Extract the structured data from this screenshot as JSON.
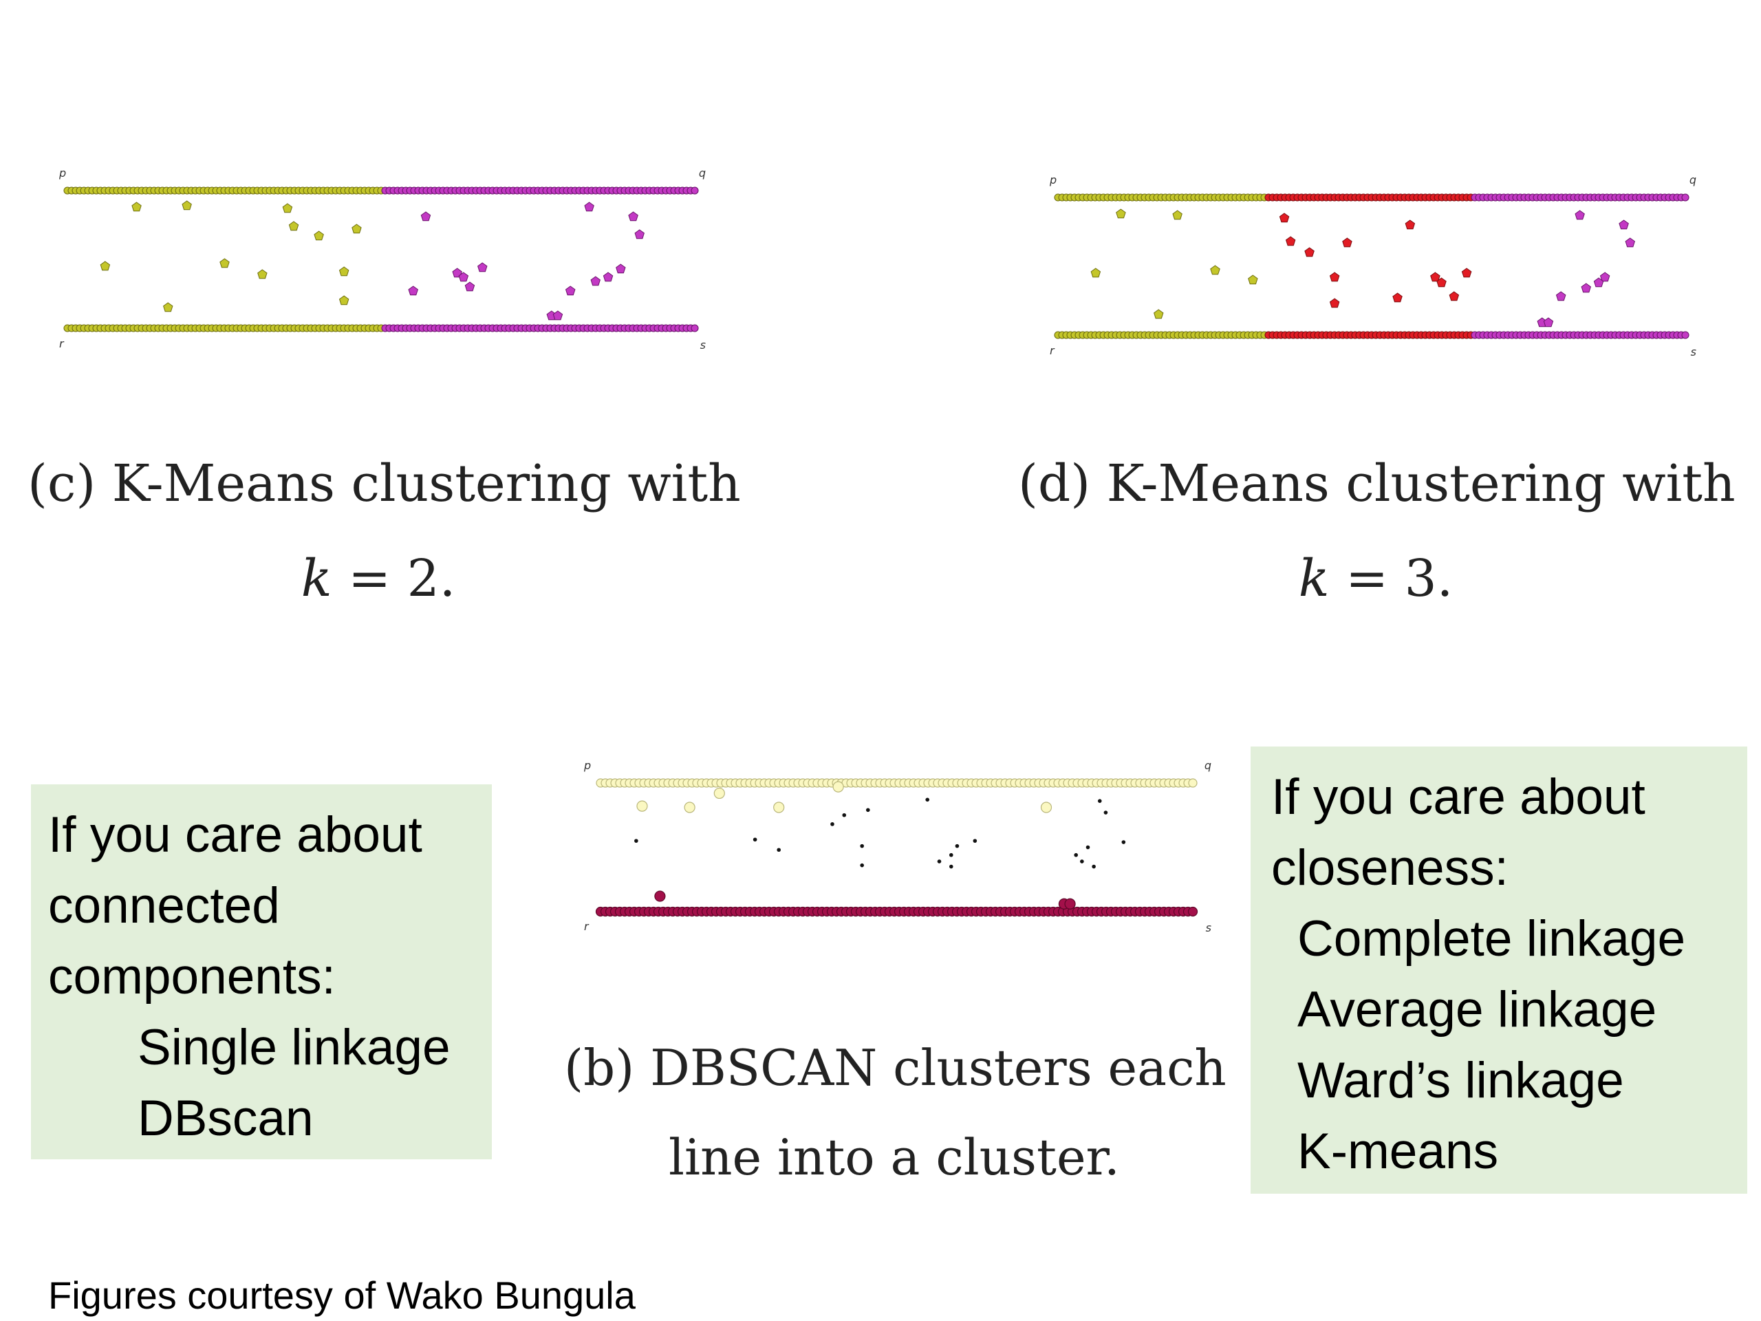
{
  "figures": [
    {
      "id": "c",
      "corner_labels": {
        "top_left": "p",
        "top_right": "q",
        "bottom_left": "r",
        "bottom_right": "s"
      },
      "clusters": [
        {
          "name": "cluster 1",
          "color": "#c4c62a",
          "edge": "#6f7010",
          "line_range": [
            0.0,
            0.5
          ]
        },
        {
          "name": "cluster 2",
          "color": "#c339c4",
          "edge": "#6b146c",
          "line_range": [
            0.5,
            1.0
          ]
        }
      ],
      "caption_line1": "(c) K-Means clustering with",
      "caption_k": "k",
      "caption_eq": " = 2."
    },
    {
      "id": "d",
      "corner_labels": {
        "top_left": "p",
        "top_right": "q",
        "bottom_left": "r",
        "bottom_right": "s"
      },
      "clusters": [
        {
          "name": "cluster 1",
          "color": "#c4c62a",
          "edge": "#6f7010",
          "line_range": [
            0.0,
            0.33
          ]
        },
        {
          "name": "cluster 2",
          "color": "#e21c24",
          "edge": "#7c0b0f",
          "line_range": [
            0.33,
            0.66
          ]
        },
        {
          "name": "cluster 3",
          "color": "#c339c4",
          "edge": "#6b146c",
          "line_range": [
            0.66,
            1.0
          ]
        }
      ],
      "caption_line1": "(d) K-Means clustering with",
      "caption_k": "k",
      "caption_eq": " = 3."
    },
    {
      "id": "b",
      "corner_labels": {
        "top_left": "p",
        "top_right": "q",
        "bottom_left": "r",
        "bottom_right": "s"
      },
      "clusters": [
        {
          "name": "top line cluster",
          "color": "#fbf8c2",
          "edge": "#b9b67a"
        },
        {
          "name": "bottom line cluster",
          "color": "#a3104a",
          "edge": "#5d0628"
        },
        {
          "name": "noise",
          "color": "#111111",
          "edge": "#111111"
        }
      ],
      "caption_line1": "(b) DBSCAN clusters each",
      "caption_line2": "line into a cluster."
    }
  ],
  "left_box": {
    "lines": [
      "If you care about",
      "connected",
      "components:"
    ],
    "items": [
      "Single linkage",
      "DBscan"
    ]
  },
  "right_box": {
    "lines": [
      "If you care about",
      "closeness:"
    ],
    "items": [
      "Complete linkage",
      "Average linkage",
      "Ward’s linkage",
      "K-means"
    ]
  },
  "footer": "Figures courtesy of Wako Bungula",
  "colors": {
    "box_bg": "#e2efda",
    "text": "#000000"
  }
}
